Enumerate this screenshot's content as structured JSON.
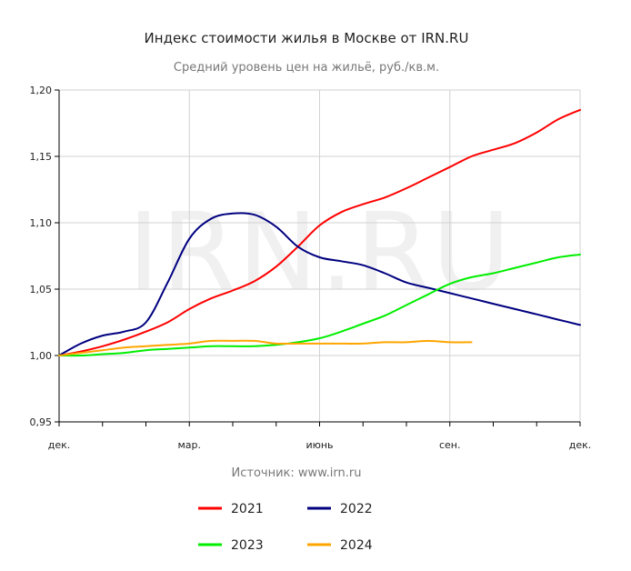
{
  "chart_data": {
    "type": "line",
    "title": "Индекс стоимости жилья в Москве от IRN.RU",
    "subtitle": "Средний уровень цен на жильё, руб./кв.м.",
    "source": "Источник: www.irn.ru",
    "watermark": "IRN.RU",
    "ylim": [
      0.95,
      1.2
    ],
    "y_ticks": [
      "1,20",
      "1,15",
      "1,10",
      "1,05",
      "1,00",
      "0,95"
    ],
    "x_ticks": [
      "дек.",
      "мар.",
      "июнь",
      "сен.",
      "дек."
    ],
    "grid": true,
    "legend_position": "bottom",
    "series": [
      {
        "name": "2021",
        "color": "#ff0000",
        "x": [
          0,
          0.5,
          1,
          1.5,
          2,
          2.5,
          3,
          3.5,
          4,
          4.5,
          5,
          5.5,
          6,
          6.5,
          7,
          7.5,
          8,
          8.5,
          9,
          9.5,
          10,
          10.5,
          11,
          11.5,
          12
        ],
        "values": [
          1.0,
          1.003,
          1.007,
          1.012,
          1.018,
          1.025,
          1.035,
          1.043,
          1.049,
          1.056,
          1.067,
          1.082,
          1.098,
          1.108,
          1.114,
          1.119,
          1.126,
          1.134,
          1.142,
          1.15,
          1.155,
          1.16,
          1.168,
          1.178,
          1.185
        ]
      },
      {
        "name": "2022",
        "color": "#000080",
        "x": [
          0,
          0.5,
          1,
          1.5,
          2,
          2.5,
          3,
          3.5,
          4,
          4.5,
          5,
          5.5,
          6,
          6.5,
          7,
          7.5,
          8,
          8.5,
          9,
          9.5,
          10,
          10.5,
          11,
          11.5,
          12
        ],
        "values": [
          1.0,
          1.009,
          1.015,
          1.018,
          1.025,
          1.055,
          1.088,
          1.103,
          1.107,
          1.106,
          1.097,
          1.082,
          1.074,
          1.071,
          1.068,
          1.062,
          1.055,
          1.051,
          1.047,
          1.043,
          1.039,
          1.035,
          1.031,
          1.027,
          1.023
        ]
      },
      {
        "name": "2023",
        "color": "#00ee00",
        "x": [
          0,
          0.5,
          1,
          1.5,
          2,
          2.5,
          3,
          3.5,
          4,
          4.5,
          5,
          5.5,
          6,
          6.5,
          7,
          7.5,
          8,
          8.5,
          9,
          9.5,
          10,
          10.5,
          11,
          11.5,
          12
        ],
        "values": [
          1.0,
          1.0,
          1.001,
          1.002,
          1.004,
          1.005,
          1.006,
          1.007,
          1.007,
          1.007,
          1.008,
          1.01,
          1.013,
          1.018,
          1.024,
          1.03,
          1.038,
          1.046,
          1.054,
          1.059,
          1.062,
          1.066,
          1.07,
          1.074,
          1.076
        ]
      },
      {
        "name": "2024",
        "color": "#ffa500",
        "x": [
          0,
          0.5,
          1,
          1.5,
          2,
          2.5,
          3,
          3.5,
          4,
          4.5,
          5,
          5.5,
          6,
          6.5,
          7,
          7.5,
          8,
          8.5,
          9,
          9.5
        ],
        "values": [
          1.0,
          1.002,
          1.004,
          1.006,
          1.007,
          1.008,
          1.009,
          1.011,
          1.011,
          1.011,
          1.009,
          1.009,
          1.009,
          1.009,
          1.009,
          1.01,
          1.01,
          1.011,
          1.01,
          1.01
        ]
      }
    ]
  }
}
